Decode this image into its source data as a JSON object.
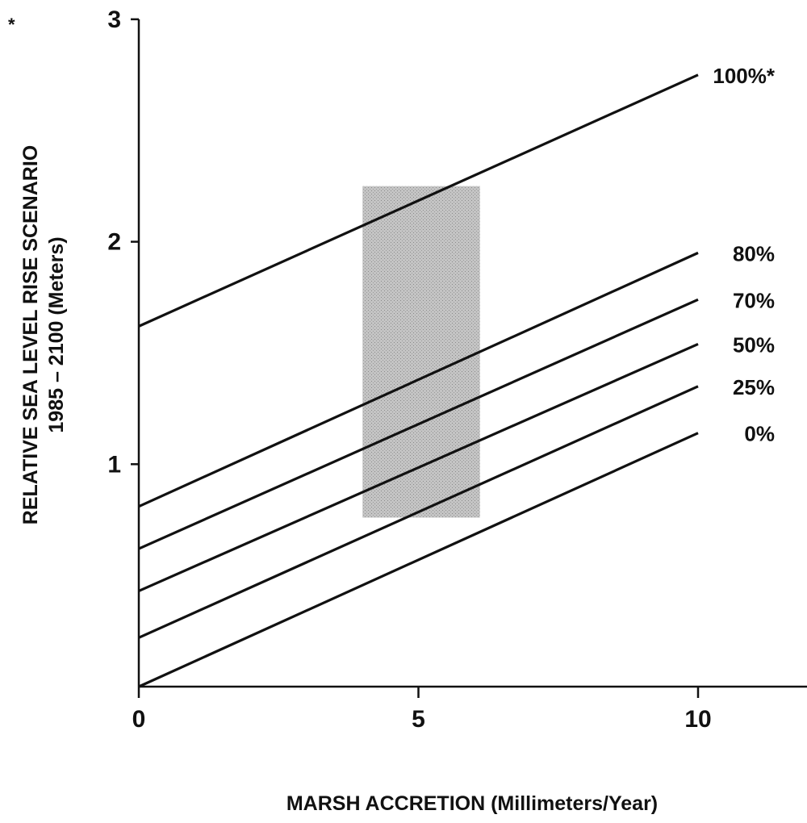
{
  "chart_data": {
    "type": "line",
    "xlabel": "MARSH ACCRETION (Millimeters/Year)",
    "ylabel_line1": "RELATIVE SEA LEVEL RISE SCENARIO",
    "ylabel_line2": "1985 – 2100 (Meters)",
    "corner_mark": "*",
    "xlim": [
      0,
      12
    ],
    "ylim": [
      0,
      3
    ],
    "x_ticks": [
      0,
      5,
      10
    ],
    "y_ticks": [
      1,
      2,
      3
    ],
    "x_tick_labels": [
      "0",
      "5",
      "10"
    ],
    "y_tick_labels": [
      "1",
      "2",
      "3"
    ],
    "grid": false,
    "series": [
      {
        "name": "100%*",
        "x": [
          0,
          10
        ],
        "y": [
          1.62,
          2.75
        ]
      },
      {
        "name": "80%",
        "x": [
          0,
          10
        ],
        "y": [
          0.81,
          1.95
        ]
      },
      {
        "name": "70%",
        "x": [
          0,
          10
        ],
        "y": [
          0.62,
          1.74
        ]
      },
      {
        "name": "50%",
        "x": [
          0,
          10
        ],
        "y": [
          0.43,
          1.54
        ]
      },
      {
        "name": "25%",
        "x": [
          0,
          10
        ],
        "y": [
          0.22,
          1.35
        ]
      },
      {
        "name": "0%",
        "x": [
          0,
          10
        ],
        "y": [
          0.0,
          1.14
        ]
      }
    ],
    "shaded_region": {
      "x": [
        4,
        6.1
      ],
      "y": [
        0.76,
        2.25
      ],
      "color": "#b9b9b9"
    },
    "line_color": "#111111"
  }
}
